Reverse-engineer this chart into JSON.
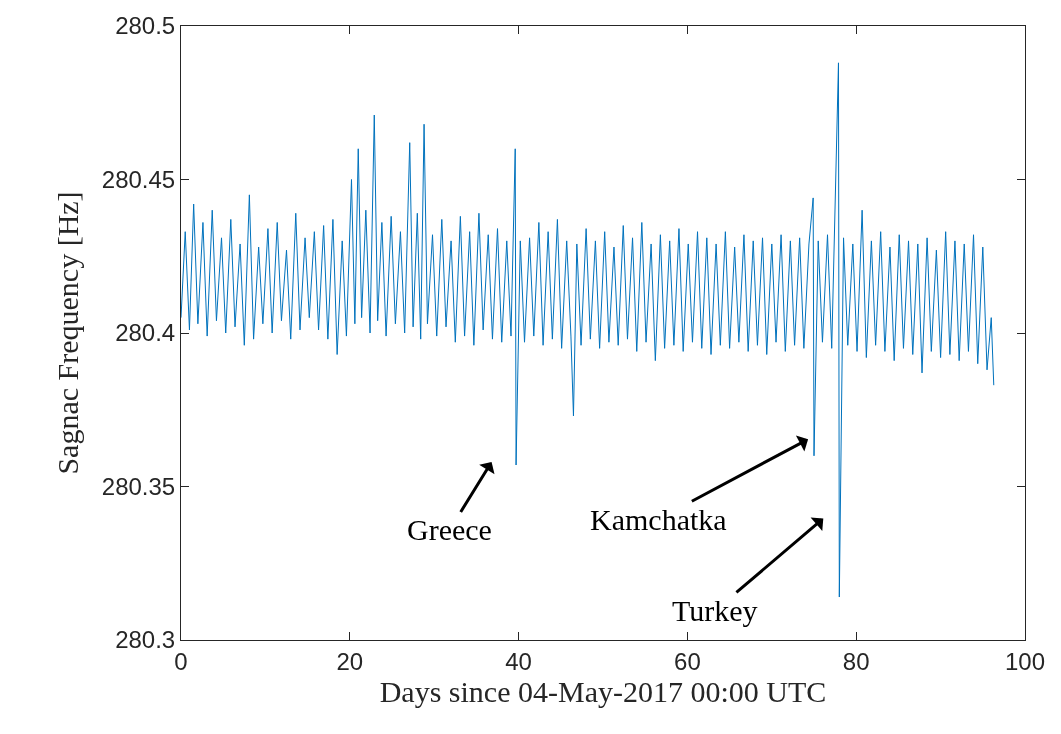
{
  "chart_data": {
    "type": "line",
    "xlabel": "Days since 04-May-2017 00:00 UTC",
    "ylabel": "Sagnac Frequency [Hz]",
    "xlim": [
      0,
      100
    ],
    "xticks": [
      0,
      20,
      40,
      60,
      80,
      100
    ],
    "ylim": [
      280.3,
      280.5
    ],
    "yticks": [
      {
        "value": 280.3,
        "label": "280.3"
      },
      280.35,
      {
        "value": 280.4,
        "label": "280.4"
      },
      280.45,
      {
        "value": 280.5,
        "label": "280.5"
      }
    ],
    "marker": "none",
    "line_style": "solid",
    "series": [
      {
        "color": "#0072bd",
        "x": [
          0,
          0.5,
          1,
          1.5,
          2,
          2.6,
          3.1,
          3.7,
          4.2,
          4.8,
          5.3,
          5.9,
          6.4,
          7,
          7.5,
          8.1,
          8.6,
          9.2,
          9.7,
          10.3,
          10.8,
          11.4,
          11.9,
          12.5,
          13,
          13.6,
          14.1,
          14.7,
          15.2,
          15.8,
          16.3,
          16.9,
          17.4,
          18,
          18.5,
          19.1,
          19.6,
          20.2,
          20.6,
          21,
          21.4,
          21.9,
          22.4,
          22.9,
          23.3,
          23.8,
          24.3,
          24.9,
          25.4,
          26,
          26.5,
          27.1,
          27.5,
          28,
          28.4,
          28.8,
          29.2,
          29.8,
          30.3,
          30.9,
          31.4,
          32,
          32.5,
          33.1,
          33.6,
          34.2,
          34.7,
          35.3,
          35.8,
          36.4,
          36.9,
          37.5,
          38,
          38.6,
          39.1,
          39.6,
          39.7,
          40.2,
          40.7,
          41.3,
          41.8,
          42.4,
          42.9,
          43.5,
          44,
          44.6,
          45.1,
          45.7,
          46.2,
          46.5,
          46.9,
          47.4,
          48,
          48.5,
          49.1,
          49.6,
          50.2,
          50.7,
          51.3,
          51.8,
          52.4,
          52.9,
          53.5,
          54,
          54.6,
          55.1,
          55.7,
          56.2,
          56.8,
          57.3,
          57.9,
          58.4,
          59,
          59.5,
          60.1,
          60.6,
          61.2,
          61.7,
          62.3,
          62.8,
          63.4,
          63.9,
          64.5,
          65,
          65.6,
          66.1,
          66.7,
          67.2,
          67.8,
          68.3,
          68.9,
          69.4,
          70,
          70.5,
          71.1,
          71.6,
          72.2,
          72.7,
          73.3,
          73.8,
          74.4,
          74.9,
          75,
          75.5,
          76,
          76.6,
          77.1,
          77.9,
          78,
          78.5,
          79,
          79.6,
          80.1,
          80.7,
          81.2,
          81.8,
          82.3,
          82.9,
          83.4,
          84,
          84.5,
          85.1,
          85.6,
          86.2,
          86.7,
          87.3,
          87.8,
          88.4,
          88.9,
          89.5,
          90,
          90.6,
          91.1,
          91.7,
          92.2,
          92.8,
          93.3,
          93.9,
          94.4,
          95,
          95.5,
          96,
          96.3
        ],
        "values": [
          280.405,
          280.433,
          280.401,
          280.442,
          280.403,
          280.436,
          280.399,
          280.44,
          280.404,
          280.431,
          280.4,
          280.437,
          280.402,
          280.429,
          280.396,
          280.445,
          280.398,
          280.428,
          280.403,
          280.434,
          280.4,
          280.436,
          280.404,
          280.427,
          280.398,
          280.439,
          280.401,
          280.431,
          280.405,
          280.433,
          280.401,
          280.435,
          280.398,
          280.437,
          280.393,
          280.43,
          280.399,
          280.45,
          280.403,
          280.46,
          280.405,
          280.44,
          280.4,
          280.471,
          280.404,
          280.436,
          280.399,
          280.438,
          280.403,
          280.433,
          280.4,
          280.462,
          280.402,
          280.439,
          280.398,
          280.468,
          280.403,
          280.432,
          280.399,
          280.437,
          280.402,
          280.43,
          280.397,
          280.438,
          280.399,
          280.433,
          280.396,
          280.439,
          280.401,
          280.432,
          280.398,
          280.434,
          280.397,
          280.43,
          280.399,
          280.46,
          280.357,
          280.43,
          280.397,
          280.431,
          280.399,
          280.436,
          280.396,
          280.433,
          280.398,
          280.437,
          280.395,
          280.43,
          280.399,
          280.373,
          280.429,
          280.396,
          280.434,
          280.398,
          280.43,
          280.395,
          280.433,
          280.397,
          280.428,
          280.396,
          280.435,
          280.398,
          280.431,
          280.394,
          280.436,
          280.397,
          280.429,
          280.391,
          280.432,
          280.395,
          280.43,
          280.396,
          280.434,
          280.394,
          280.429,
          280.397,
          280.433,
          280.395,
          280.431,
          280.393,
          280.429,
          280.396,
          280.433,
          280.395,
          280.428,
          280.397,
          280.432,
          280.394,
          280.43,
          280.396,
          280.431,
          280.393,
          280.429,
          280.397,
          280.432,
          280.394,
          280.43,
          280.396,
          280.431,
          280.395,
          280.429,
          280.444,
          280.36,
          280.43,
          280.397,
          280.432,
          280.395,
          280.488,
          280.314,
          280.431,
          280.396,
          280.429,
          280.394,
          280.44,
          280.392,
          280.43,
          280.396,
          280.433,
          280.394,
          280.428,
          280.391,
          280.432,
          280.395,
          280.43,
          280.393,
          280.429,
          280.387,
          280.431,
          280.394,
          280.427,
          280.392,
          280.433,
          280.393,
          280.43,
          280.391,
          280.429,
          280.394,
          280.432,
          280.39,
          280.428,
          280.388,
          280.405,
          280.383
        ]
      }
    ],
    "annotations": [
      "Greece",
      "Kamchatka",
      "Turkey"
    ]
  }
}
